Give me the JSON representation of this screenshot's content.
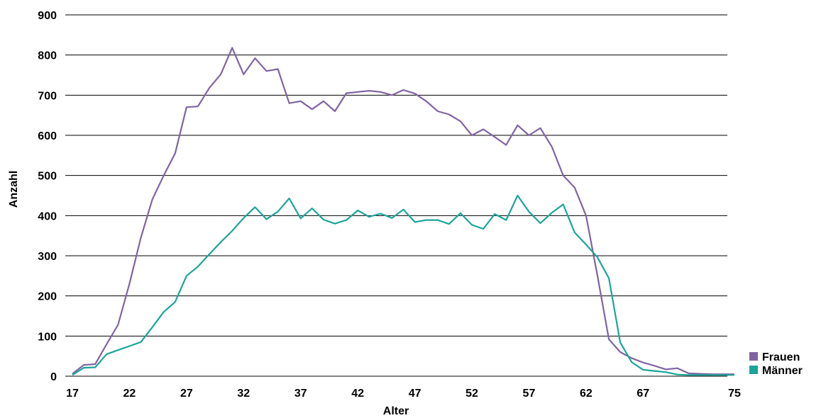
{
  "chart_data": {
    "type": "line",
    "xlabel": "Alter",
    "ylabel": "Anzahl",
    "ylim": [
      0,
      900
    ],
    "yticks": [
      0,
      100,
      200,
      300,
      400,
      500,
      600,
      700,
      800,
      900
    ],
    "xlim": [
      17,
      75
    ],
    "xticks": [
      17,
      22,
      27,
      32,
      37,
      42,
      47,
      52,
      57,
      62,
      67,
      75
    ],
    "grid": true,
    "legend_position": "bottom-right",
    "x": [
      17,
      18,
      19,
      20,
      21,
      22,
      23,
      24,
      25,
      26,
      27,
      28,
      29,
      30,
      31,
      32,
      33,
      34,
      35,
      36,
      37,
      38,
      39,
      40,
      41,
      42,
      43,
      44,
      45,
      46,
      47,
      48,
      49,
      50,
      51,
      52,
      53,
      54,
      55,
      56,
      57,
      58,
      59,
      60,
      61,
      62,
      63,
      64,
      65,
      66,
      67,
      68,
      69,
      70,
      71,
      72,
      73,
      74,
      75
    ],
    "series": [
      {
        "name": "Frauen",
        "color": "#8064a2",
        "values": [
          6,
          28,
          30,
          80,
          128,
          230,
          345,
          440,
          500,
          555,
          670,
          672,
          718,
          752,
          818,
          752,
          792,
          760,
          765,
          680,
          685,
          665,
          685,
          660,
          705,
          708,
          711,
          708,
          700,
          713,
          704,
          685,
          660,
          652,
          635,
          600,
          615,
          596,
          576,
          625,
          600,
          618,
          572,
          500,
          470,
          400,
          250,
          92,
          60,
          45,
          34,
          26,
          17,
          20,
          7,
          6,
          5,
          5,
          5
        ]
      },
      {
        "name": "Männer",
        "color": "#1aa59a",
        "values": [
          3,
          21,
          22,
          55,
          65,
          75,
          85,
          122,
          160,
          185,
          250,
          273,
          304,
          334,
          362,
          394,
          421,
          391,
          410,
          443,
          393,
          418,
          390,
          380,
          389,
          413,
          397,
          405,
          394,
          415,
          384,
          389,
          389,
          379,
          406,
          377,
          367,
          404,
          389,
          450,
          410,
          381,
          407,
          428,
          358,
          328,
          296,
          244,
          84,
          35,
          16,
          13,
          10,
          4,
          3,
          3,
          3,
          3,
          3
        ]
      }
    ]
  }
}
